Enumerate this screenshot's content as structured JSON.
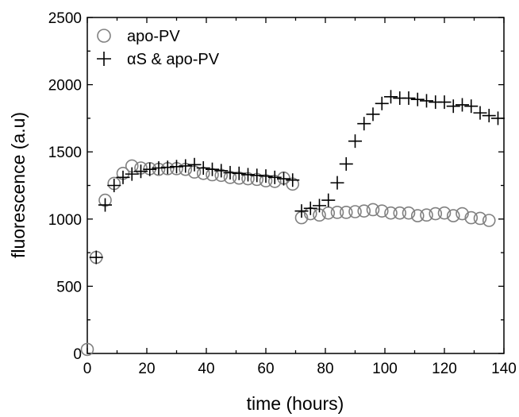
{
  "chart_data": {
    "type": "scatter",
    "title": "",
    "xlabel": "time (hours)",
    "ylabel": "fluorescence (a.u)",
    "xlim": [
      0,
      140
    ],
    "ylim": [
      0,
      2500
    ],
    "x_ticks": [
      0,
      20,
      40,
      60,
      80,
      100,
      120,
      140
    ],
    "y_ticks": [
      0,
      500,
      1000,
      1500,
      2000,
      2500
    ],
    "grid": false,
    "legend_position": "top-left",
    "series": [
      {
        "name": "apo-PV",
        "marker": "open-circle",
        "color": "#808080",
        "points": [
          [
            0,
            30
          ],
          [
            3,
            715
          ],
          [
            6,
            1140
          ],
          [
            9,
            1265
          ],
          [
            12,
            1340
          ],
          [
            15,
            1395
          ],
          [
            18,
            1380
          ],
          [
            21,
            1375
          ],
          [
            24,
            1370
          ],
          [
            27,
            1375
          ],
          [
            30,
            1375
          ],
          [
            33,
            1370
          ],
          [
            36,
            1350
          ],
          [
            39,
            1340
          ],
          [
            42,
            1330
          ],
          [
            45,
            1325
          ],
          [
            48,
            1310
          ],
          [
            51,
            1305
          ],
          [
            54,
            1300
          ],
          [
            57,
            1295
          ],
          [
            60,
            1285
          ],
          [
            63,
            1280
          ],
          [
            66,
            1305
          ],
          [
            69,
            1260
          ],
          [
            72,
            1010
          ],
          [
            75,
            1040
          ],
          [
            78,
            1030
          ],
          [
            81,
            1045
          ],
          [
            84,
            1050
          ],
          [
            87,
            1050
          ],
          [
            90,
            1055
          ],
          [
            93,
            1060
          ],
          [
            96,
            1070
          ],
          [
            99,
            1060
          ],
          [
            102,
            1045
          ],
          [
            105,
            1045
          ],
          [
            108,
            1045
          ],
          [
            111,
            1025
          ],
          [
            114,
            1030
          ],
          [
            117,
            1040
          ],
          [
            120,
            1045
          ],
          [
            123,
            1025
          ],
          [
            126,
            1040
          ],
          [
            129,
            1010
          ],
          [
            132,
            1005
          ],
          [
            135,
            990
          ]
        ]
      },
      {
        "name": "αS & apo-PV",
        "marker": "plus",
        "color": "#000000",
        "points": [
          [
            3,
            715
          ],
          [
            6,
            1105
          ],
          [
            9,
            1250
          ],
          [
            12,
            1310
          ],
          [
            15,
            1335
          ],
          [
            18,
            1355
          ],
          [
            21,
            1370
          ],
          [
            24,
            1380
          ],
          [
            27,
            1385
          ],
          [
            30,
            1390
          ],
          [
            33,
            1395
          ],
          [
            36,
            1405
          ],
          [
            39,
            1380
          ],
          [
            42,
            1370
          ],
          [
            45,
            1360
          ],
          [
            48,
            1345
          ],
          [
            51,
            1340
          ],
          [
            54,
            1330
          ],
          [
            57,
            1325
          ],
          [
            60,
            1320
          ],
          [
            63,
            1310
          ],
          [
            66,
            1300
          ],
          [
            69,
            1290
          ],
          [
            72,
            1060
          ],
          [
            75,
            1080
          ],
          [
            78,
            1100
          ],
          [
            81,
            1140
          ],
          [
            84,
            1270
          ],
          [
            87,
            1410
          ],
          [
            90,
            1580
          ],
          [
            93,
            1710
          ],
          [
            96,
            1780
          ],
          [
            99,
            1860
          ],
          [
            102,
            1910
          ],
          [
            105,
            1900
          ],
          [
            108,
            1900
          ],
          [
            111,
            1890
          ],
          [
            114,
            1880
          ],
          [
            117,
            1870
          ],
          [
            120,
            1870
          ],
          [
            123,
            1840
          ],
          [
            126,
            1850
          ],
          [
            129,
            1840
          ],
          [
            132,
            1790
          ],
          [
            135,
            1770
          ],
          [
            138,
            1750
          ]
        ]
      }
    ]
  }
}
